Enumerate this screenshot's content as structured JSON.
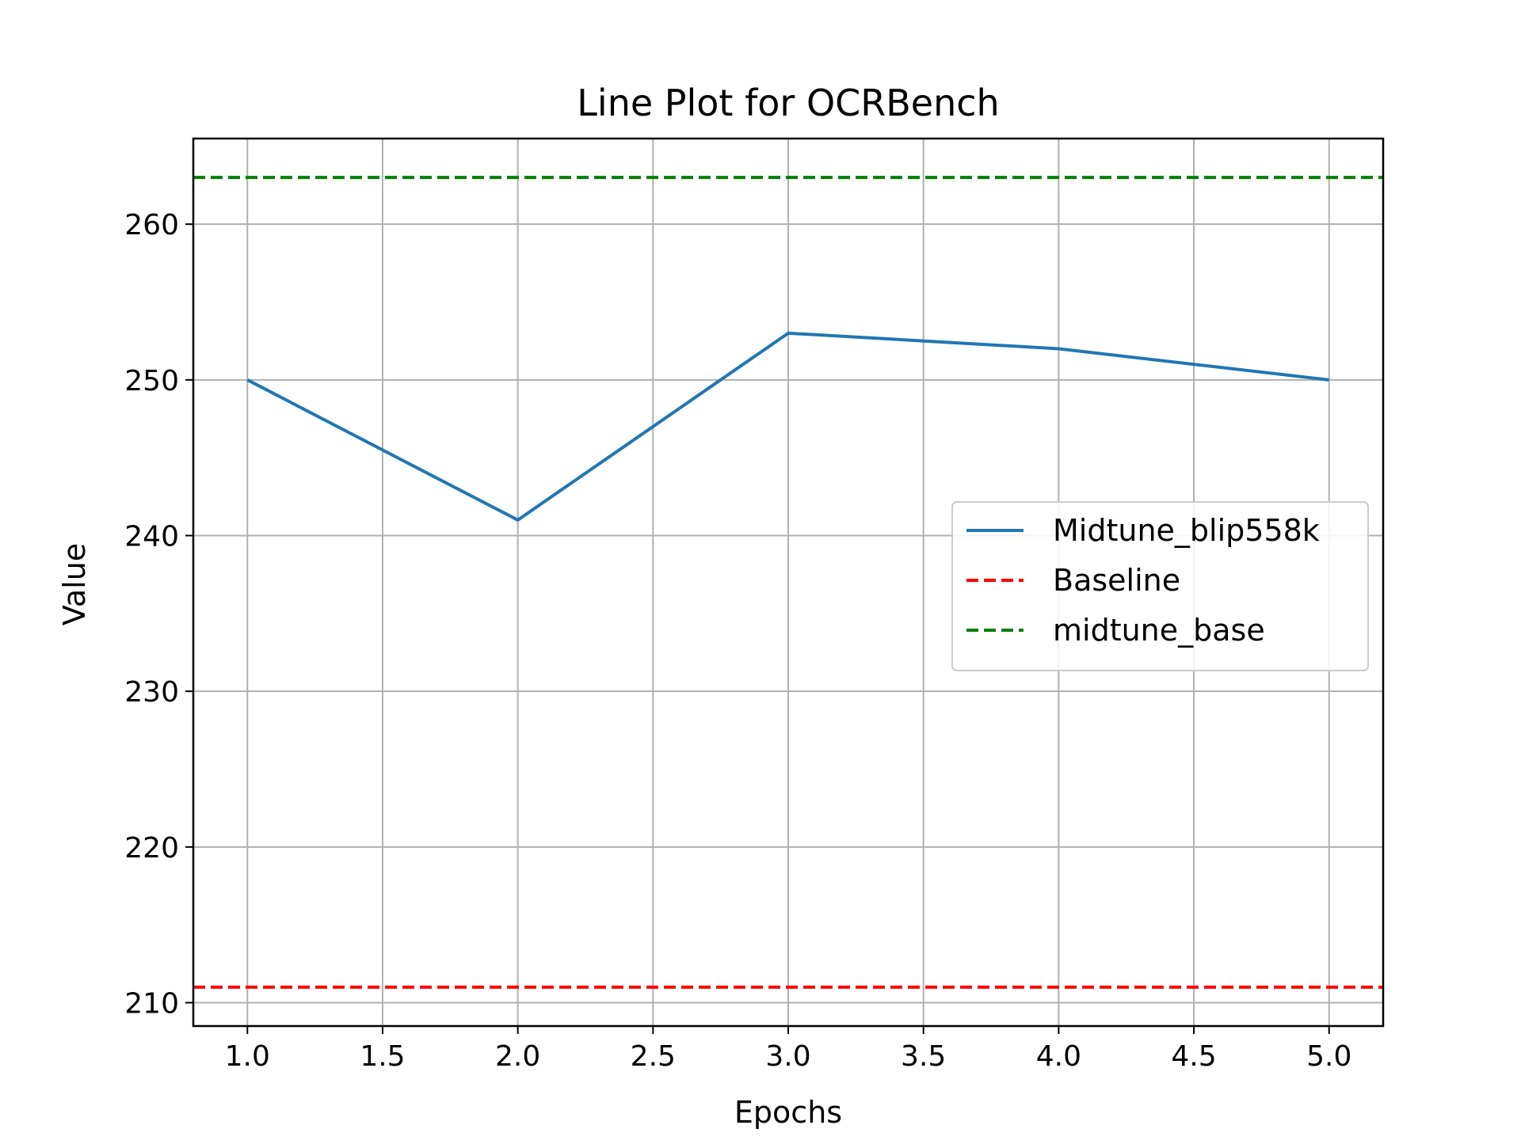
{
  "chart_data": {
    "type": "line",
    "title": "Line Plot for OCRBench",
    "xlabel": "Epochs",
    "ylabel": "Value",
    "xlim": [
      0.8,
      5.2
    ],
    "ylim": [
      208.5,
      265.5
    ],
    "xticks": [
      1.0,
      1.5,
      2.0,
      2.5,
      3.0,
      3.5,
      4.0,
      4.5,
      5.0
    ],
    "xtick_labels": [
      "1.0",
      "1.5",
      "2.0",
      "2.5",
      "3.0",
      "3.5",
      "4.0",
      "4.5",
      "5.0"
    ],
    "yticks": [
      210,
      220,
      230,
      240,
      250,
      260
    ],
    "ytick_labels": [
      "210",
      "220",
      "230",
      "240",
      "250",
      "260"
    ],
    "grid": true,
    "legend_position": "center-right",
    "series": [
      {
        "name": "Midtune_blip558k",
        "color": "#1f77b4",
        "style": "solid",
        "x": [
          1,
          2,
          3,
          4,
          5
        ],
        "values": [
          250,
          241,
          253,
          252,
          250
        ]
      }
    ],
    "hlines": [
      {
        "name": "Baseline",
        "color": "#ff0000",
        "style": "dashed",
        "value": 211
      },
      {
        "name": "midtune_base",
        "color": "#008000",
        "style": "dashed",
        "value": 263
      }
    ]
  }
}
